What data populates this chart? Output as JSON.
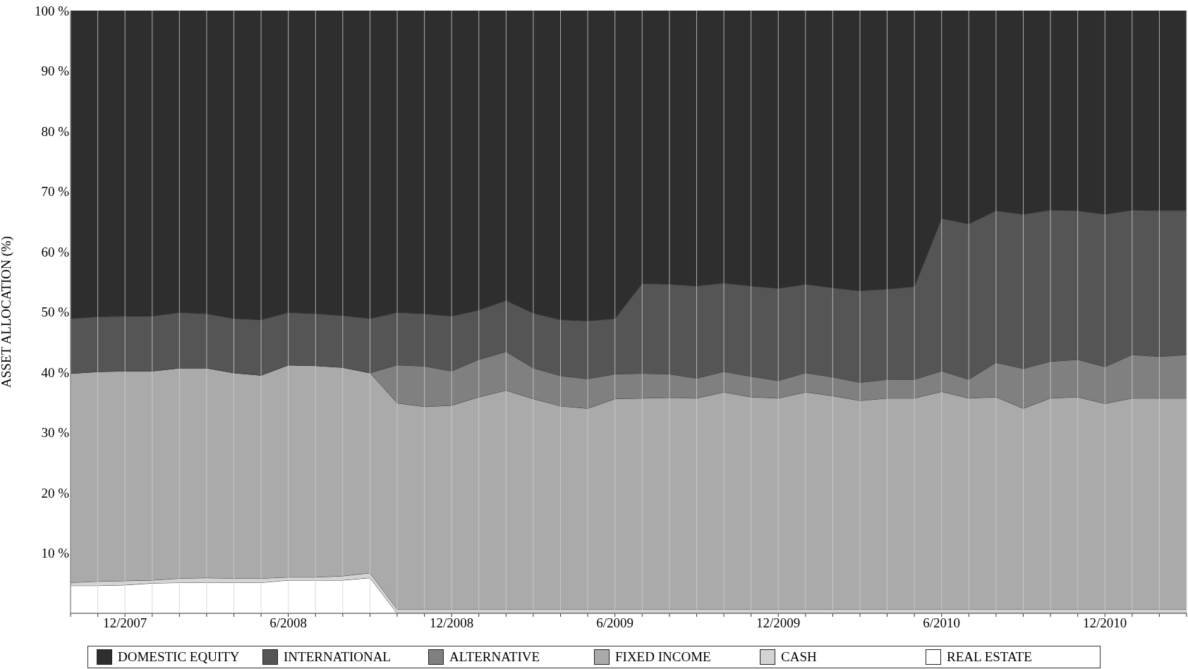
{
  "chart_data": {
    "type": "area",
    "stacked": true,
    "ylabel": "ASSET ALLOCATION (%)",
    "x": [
      "2007-10",
      "2007-11",
      "2007-12",
      "2008-01",
      "2008-02",
      "2008-03",
      "2008-04",
      "2008-05",
      "2008-06",
      "2008-07",
      "2008-08",
      "2008-09",
      "2008-10",
      "2008-11",
      "2008-12",
      "2009-01",
      "2009-02",
      "2009-03",
      "2009-04",
      "2009-05",
      "2009-06",
      "2009-07",
      "2009-08",
      "2009-09",
      "2009-10",
      "2009-11",
      "2009-12",
      "2010-01",
      "2010-02",
      "2010-03",
      "2010-04",
      "2010-05",
      "2010-06",
      "2010-07",
      "2010-08",
      "2010-09",
      "2010-10",
      "2010-11",
      "2010-12",
      "2011-01",
      "2011-02",
      "2011-03"
    ],
    "xlim": [
      "2007-10",
      "2011-03"
    ],
    "xticks": [
      {
        "value": "2007-10",
        "label": null
      },
      {
        "value": "2007-11",
        "label": null
      },
      {
        "value": "2007-12",
        "label": "12/2007"
      },
      {
        "value": "2008-01",
        "label": null
      },
      {
        "value": "2008-02",
        "label": null
      },
      {
        "value": "2008-03",
        "label": null
      },
      {
        "value": "2008-04",
        "label": null
      },
      {
        "value": "2008-05",
        "label": null
      },
      {
        "value": "2008-06",
        "label": "6/2008"
      },
      {
        "value": "2008-07",
        "label": null
      },
      {
        "value": "2008-08",
        "label": null
      },
      {
        "value": "2008-09",
        "label": null
      },
      {
        "value": "2008-10",
        "label": null
      },
      {
        "value": "2008-11",
        "label": null
      },
      {
        "value": "2008-12",
        "label": "12/2008"
      },
      {
        "value": "2009-01",
        "label": null
      },
      {
        "value": "2009-02",
        "label": null
      },
      {
        "value": "2009-03",
        "label": null
      },
      {
        "value": "2009-04",
        "label": null
      },
      {
        "value": "2009-05",
        "label": null
      },
      {
        "value": "2009-06",
        "label": "6/2009"
      },
      {
        "value": "2009-07",
        "label": null
      },
      {
        "value": "2009-08",
        "label": null
      },
      {
        "value": "2009-09",
        "label": null
      },
      {
        "value": "2009-10",
        "label": null
      },
      {
        "value": "2009-11",
        "label": null
      },
      {
        "value": "2009-12",
        "label": "12/2009"
      },
      {
        "value": "2010-01",
        "label": null
      },
      {
        "value": "2010-02",
        "label": null
      },
      {
        "value": "2010-03",
        "label": null
      },
      {
        "value": "2010-04",
        "label": null
      },
      {
        "value": "2010-05",
        "label": null
      },
      {
        "value": "2010-06",
        "label": "6/2010"
      },
      {
        "value": "2010-07",
        "label": null
      },
      {
        "value": "2010-08",
        "label": null
      },
      {
        "value": "2010-09",
        "label": null
      },
      {
        "value": "2010-10",
        "label": null
      },
      {
        "value": "2010-11",
        "label": null
      },
      {
        "value": "2010-12",
        "label": "12/2010"
      },
      {
        "value": "2011-01",
        "label": null
      },
      {
        "value": "2011-02",
        "label": null
      },
      {
        "value": "2011-03",
        "label": null
      }
    ],
    "ylim": [
      0,
      100
    ],
    "yticks": [
      {
        "value": 10,
        "label": "10 %"
      },
      {
        "value": 20,
        "label": "20 %"
      },
      {
        "value": 30,
        "label": "30 %"
      },
      {
        "value": 40,
        "label": "40 %"
      },
      {
        "value": 50,
        "label": "50 %"
      },
      {
        "value": 60,
        "label": "60 %"
      },
      {
        "value": 70,
        "label": "70 %"
      },
      {
        "value": 80,
        "label": "80 %"
      },
      {
        "value": 90,
        "label": "90 %"
      },
      {
        "value": 100,
        "label": "100 %"
      }
    ],
    "grid": "x",
    "legend": "bottom",
    "series": [
      {
        "name": "REAL ESTATE",
        "color": "#ffffff",
        "values": [
          4.6,
          4.6,
          4.7,
          5.0,
          5.1,
          5.1,
          5.1,
          5.1,
          5.5,
          5.5,
          5.5,
          5.9,
          0,
          0,
          0,
          0,
          0,
          0,
          0,
          0,
          0,
          0,
          0,
          0,
          0,
          0,
          0,
          0,
          0,
          0,
          0,
          0,
          0,
          0,
          0,
          0,
          0,
          0,
          0,
          0,
          0,
          0
        ]
      },
      {
        "name": "CASH",
        "color": "#d4d4d4",
        "values": [
          0.5,
          0.7,
          0.7,
          0.5,
          0.7,
          0.8,
          0.7,
          0.7,
          0.5,
          0.5,
          0.7,
          0.8,
          0.7,
          0.7,
          0.7,
          0.7,
          0.7,
          0.7,
          0.7,
          0.7,
          0.7,
          0.7,
          0.7,
          0.7,
          0.7,
          0.7,
          0.7,
          0.7,
          0.7,
          0.7,
          0.7,
          0.7,
          0.7,
          0.7,
          0.7,
          0.7,
          0.7,
          0.7,
          0.7,
          0.7,
          0.7,
          0.7
        ]
      },
      {
        "name": "FIXED INCOME",
        "color": "#aaaaaa",
        "values": [
          34.7,
          34.8,
          34.8,
          34.7,
          34.9,
          34.8,
          34.1,
          33.7,
          35.2,
          35.1,
          34.6,
          33.2,
          34.2,
          33.6,
          33.8,
          35.2,
          36.3,
          34.9,
          33.7,
          33.3,
          34.9,
          35.0,
          35.1,
          35.0,
          36.0,
          35.2,
          35.0,
          36.0,
          35.4,
          34.6,
          35.0,
          35.0,
          36.1,
          35.0,
          35.2,
          33.3,
          35.0,
          35.2,
          34.1,
          35.0,
          35.0,
          35.0
        ]
      },
      {
        "name": "ALTERNATIVE",
        "color": "#808080",
        "values": [
          0,
          0,
          0,
          0,
          0,
          0,
          0,
          0,
          0,
          0,
          0,
          0,
          6.3,
          6.7,
          5.7,
          6.2,
          6.4,
          5.1,
          5.0,
          4.9,
          4.1,
          4.1,
          3.9,
          3.3,
          3.4,
          3.4,
          2.9,
          3.2,
          3.1,
          3.0,
          3.1,
          3.1,
          3.4,
          3.1,
          5.7,
          6.6,
          6.1,
          6.2,
          6.1,
          7.2,
          6.9,
          7.2
        ]
      },
      {
        "name": "INTERNATIONAL",
        "color": "#555555",
        "values": [
          9.1,
          9.1,
          9.1,
          9.1,
          9.2,
          9.0,
          9.0,
          9.2,
          8.7,
          8.6,
          8.6,
          9.0,
          8.7,
          8.7,
          9.1,
          8.2,
          8.5,
          9.1,
          9.3,
          9.6,
          9.2,
          14.9,
          14.9,
          15.3,
          14.7,
          15.0,
          15.3,
          14.7,
          14.8,
          15.2,
          15.0,
          15.4,
          25.3,
          25.8,
          25.2,
          25.6,
          25.1,
          24.7,
          25.3,
          24.0,
          24.2,
          23.9
        ]
      },
      {
        "name": "DOMESTIC EQUITY",
        "color": "#2e2e2e",
        "values": [
          51.1,
          50.8,
          50.7,
          50.7,
          50.1,
          50.3,
          51.1,
          51.3,
          50.1,
          50.3,
          50.6,
          51.1,
          50.1,
          50.3,
          50.7,
          49.7,
          48.1,
          50.2,
          51.3,
          51.5,
          51.1,
          45.3,
          45.4,
          45.7,
          45.2,
          45.7,
          46.1,
          45.4,
          46.0,
          46.5,
          46.2,
          45.8,
          34.5,
          35.4,
          33.2,
          33.8,
          33.1,
          33.2,
          33.8,
          33.1,
          33.2,
          33.2
        ]
      }
    ]
  }
}
